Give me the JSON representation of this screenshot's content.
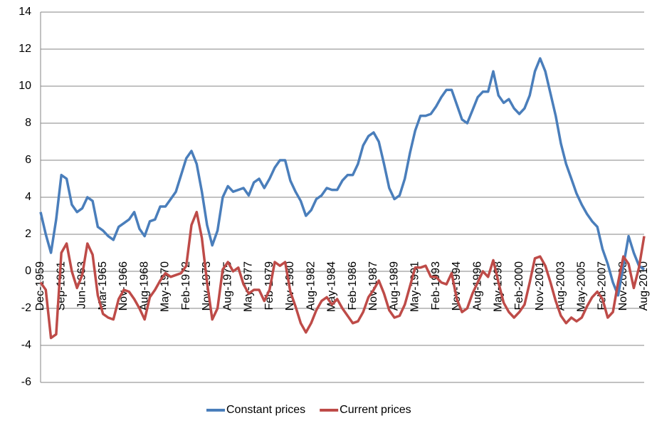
{
  "chart_data": {
    "type": "line",
    "categories": [
      "Dec-1959",
      null,
      null,
      null,
      "Sep-1961",
      null,
      null,
      null,
      "Jun-1963",
      null,
      null,
      null,
      "Mar-1965",
      null,
      null,
      null,
      "Nov-1966",
      null,
      null,
      null,
      "Aug-1968",
      null,
      null,
      null,
      "May-1970",
      null,
      null,
      null,
      "Feb-1972",
      null,
      null,
      null,
      "Nov-1973",
      null,
      null,
      null,
      "Aug-1975",
      null,
      null,
      null,
      "May-1977",
      null,
      null,
      null,
      "Feb-1979",
      null,
      null,
      null,
      "Nov-1980",
      null,
      null,
      null,
      "Aug-1982",
      null,
      null,
      null,
      "May-1984",
      null,
      null,
      null,
      "Feb-1986",
      null,
      null,
      null,
      "Nov-1987",
      null,
      null,
      null,
      "Aug-1989",
      null,
      null,
      null,
      "May-1991",
      null,
      null,
      null,
      "Feb-1993",
      null,
      null,
      null,
      "Nov-1994",
      null,
      null,
      null,
      "Aug-1996",
      null,
      null,
      null,
      "May-1998",
      null,
      null,
      null,
      "Feb-2000",
      null,
      null,
      null,
      "Nov-2001",
      null,
      null,
      null,
      "Aug-2003",
      null,
      null,
      null,
      "May-2005",
      null,
      null,
      null,
      "Feb-2007",
      null,
      null,
      null,
      "Nov-2008",
      null,
      null,
      null,
      "Aug-2010"
    ],
    "series": [
      {
        "name": "Constant prices",
        "color": "#4a7ebb",
        "values": [
          3.2,
          2.0,
          1.0,
          2.8,
          5.2,
          5.0,
          3.6,
          3.2,
          3.4,
          4.0,
          3.8,
          2.4,
          2.2,
          1.9,
          1.7,
          2.4,
          2.6,
          2.8,
          3.2,
          2.3,
          1.9,
          2.7,
          2.8,
          3.5,
          3.5,
          3.9,
          4.3,
          5.2,
          6.1,
          6.5,
          5.8,
          4.3,
          2.5,
          1.4,
          2.2,
          4.0,
          4.6,
          4.3,
          4.4,
          4.5,
          4.1,
          4.8,
          5.0,
          4.5,
          5.0,
          5.6,
          6.0,
          6.0,
          4.9,
          4.3,
          3.8,
          3.0,
          3.3,
          3.9,
          4.1,
          4.5,
          4.4,
          4.4,
          4.9,
          5.2,
          5.2,
          5.8,
          6.8,
          7.3,
          7.5,
          7.0,
          5.8,
          4.5,
          3.9,
          4.1,
          5.0,
          6.4,
          7.6,
          8.4,
          8.4,
          8.5,
          8.9,
          9.4,
          9.8,
          9.8,
          9.0,
          8.2,
          8.0,
          8.7,
          9.4,
          9.7,
          9.7,
          10.8,
          9.5,
          9.1,
          9.3,
          8.8,
          8.5,
          8.8,
          9.5,
          10.8,
          11.5,
          10.8,
          9.6,
          8.4,
          6.9,
          5.8,
          5.0,
          4.2,
          3.6,
          3.1,
          2.7,
          2.4,
          1.2,
          0.4,
          -0.6,
          -1.3,
          0.3,
          1.9,
          1.0,
          0.3,
          0.1
        ]
      },
      {
        "name": "Current prices",
        "color": "#be4b48",
        "values": [
          -0.6,
          -1.0,
          -3.6,
          -3.4,
          1.0,
          1.5,
          0.0,
          -0.9,
          -0.2,
          1.5,
          0.9,
          -1.3,
          -2.3,
          -2.5,
          -2.6,
          -1.5,
          -1.0,
          -1.1,
          -1.5,
          -2.0,
          -2.6,
          -1.4,
          -1.0,
          -0.5,
          -0.1,
          -0.3,
          -0.2,
          -0.1,
          0.3,
          2.5,
          3.2,
          1.8,
          -0.6,
          -2.6,
          -2.0,
          0.1,
          0.5,
          0.0,
          0.2,
          -0.7,
          -1.2,
          -1.0,
          -1.0,
          -1.6,
          -1.0,
          0.5,
          0.3,
          0.5,
          -1.1,
          -1.9,
          -2.8,
          -3.3,
          -2.8,
          -2.1,
          -1.6,
          -1.4,
          -1.8,
          -1.5,
          -2.0,
          -2.4,
          -2.8,
          -2.7,
          -2.2,
          -1.4,
          -1.0,
          -0.5,
          -1.2,
          -2.1,
          -2.5,
          -2.4,
          -1.8,
          -0.8,
          0.2,
          0.2,
          0.3,
          -0.3,
          -0.3,
          -0.6,
          -0.7,
          -0.1,
          -1.5,
          -2.2,
          -2.0,
          -1.2,
          -0.6,
          0.0,
          -0.3,
          0.6,
          -0.6,
          -1.7,
          -2.2,
          -2.5,
          -2.2,
          -1.8,
          -0.6,
          0.7,
          0.8,
          0.3,
          -0.6,
          -1.6,
          -2.4,
          -2.8,
          -2.5,
          -2.7,
          -2.5,
          -1.9,
          -1.4,
          -1.1,
          -1.5,
          -2.5,
          -2.2,
          -0.6,
          0.8,
          0.4,
          -0.9,
          0.2,
          1.9
        ]
      }
    ],
    "ylim": [
      -6,
      14
    ],
    "yticks": [
      -6,
      -4,
      -2,
      0,
      2,
      4,
      6,
      8,
      10,
      12,
      14
    ],
    "grid": true,
    "legend": "bottom"
  }
}
